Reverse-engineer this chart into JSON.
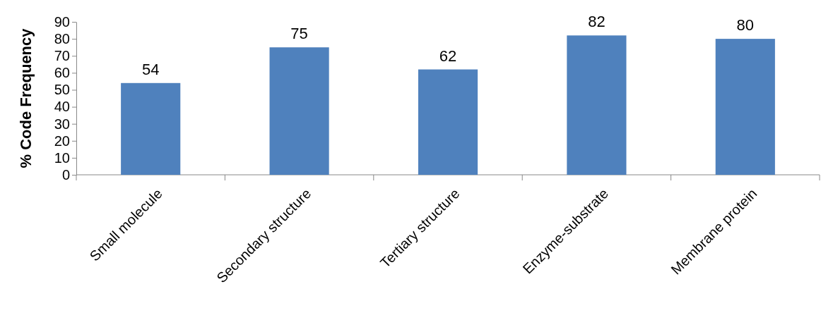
{
  "chart_data": {
    "type": "bar",
    "ylabel": "% Code Frequency",
    "categories": [
      "Small molecule",
      "Secondary structure",
      "Tertiary structure",
      "Enzyme-substrate",
      "Membrane protein"
    ],
    "values": [
      54,
      75,
      62,
      82,
      80
    ],
    "color": "#4f81bd",
    "ylim": [
      0,
      90
    ],
    "yticks": [
      0,
      10,
      20,
      30,
      40,
      50,
      60,
      70,
      80,
      90
    ],
    "data_labels": true,
    "grid": false
  }
}
